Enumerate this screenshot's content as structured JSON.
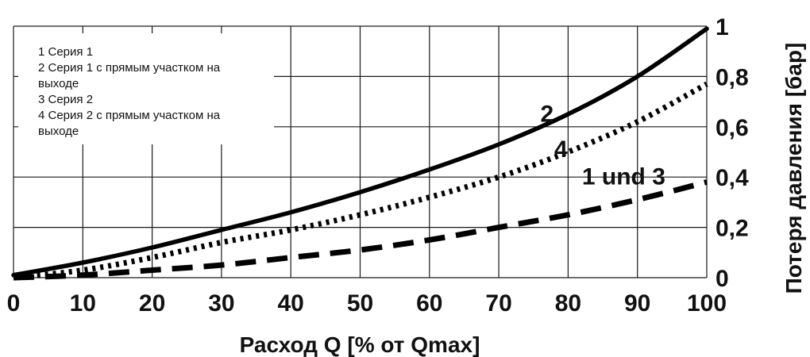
{
  "chart_data": {
    "type": "line",
    "xlabel": "Расход Q [% от Qmax]",
    "ylabel": "Потеря давления [бар]",
    "xlim": [
      0,
      100
    ],
    "ylim": [
      0,
      1
    ],
    "x_ticks": [
      "0",
      "10",
      "20",
      "30",
      "40",
      "50",
      "60",
      "70",
      "80",
      "90",
      "100"
    ],
    "y_ticks": [
      "0",
      "0,2",
      "0,4",
      "0,6",
      "0,8",
      "1"
    ],
    "grid": true,
    "legend": {
      "placement": "top-left",
      "lines": [
        "1 Серия 1",
        "2 Серия 1 с прямым участком на",
        "выходе",
        "3 Серия 2",
        "4 Серия 2 с прямым участком на",
        "выходе"
      ]
    },
    "series": [
      {
        "name": "2",
        "style": "solid",
        "x": [
          0,
          10,
          20,
          30,
          40,
          50,
          60,
          70,
          80,
          90,
          100
        ],
        "y": [
          0.01,
          0.06,
          0.12,
          0.19,
          0.26,
          0.34,
          0.43,
          0.53,
          0.65,
          0.8,
          0.99
        ]
      },
      {
        "name": "4",
        "style": "dotted",
        "x": [
          0,
          10,
          20,
          30,
          40,
          50,
          60,
          70,
          80,
          90,
          100
        ],
        "y": [
          0.0,
          0.03,
          0.08,
          0.14,
          0.19,
          0.25,
          0.32,
          0.4,
          0.5,
          0.62,
          0.77
        ]
      },
      {
        "name": "1 und 3",
        "style": "dashed",
        "x": [
          0,
          10,
          20,
          30,
          40,
          50,
          60,
          70,
          80,
          90,
          100
        ],
        "y": [
          0.0,
          0.01,
          0.03,
          0.05,
          0.08,
          0.11,
          0.15,
          0.2,
          0.25,
          0.31,
          0.38
        ]
      }
    ],
    "annotations": [
      {
        "text": "2",
        "x": 76,
        "y": 0.62
      },
      {
        "text": "4",
        "x": 78,
        "y": 0.48
      },
      {
        "text": "1 und 3",
        "x": 82,
        "y": 0.37
      }
    ]
  }
}
